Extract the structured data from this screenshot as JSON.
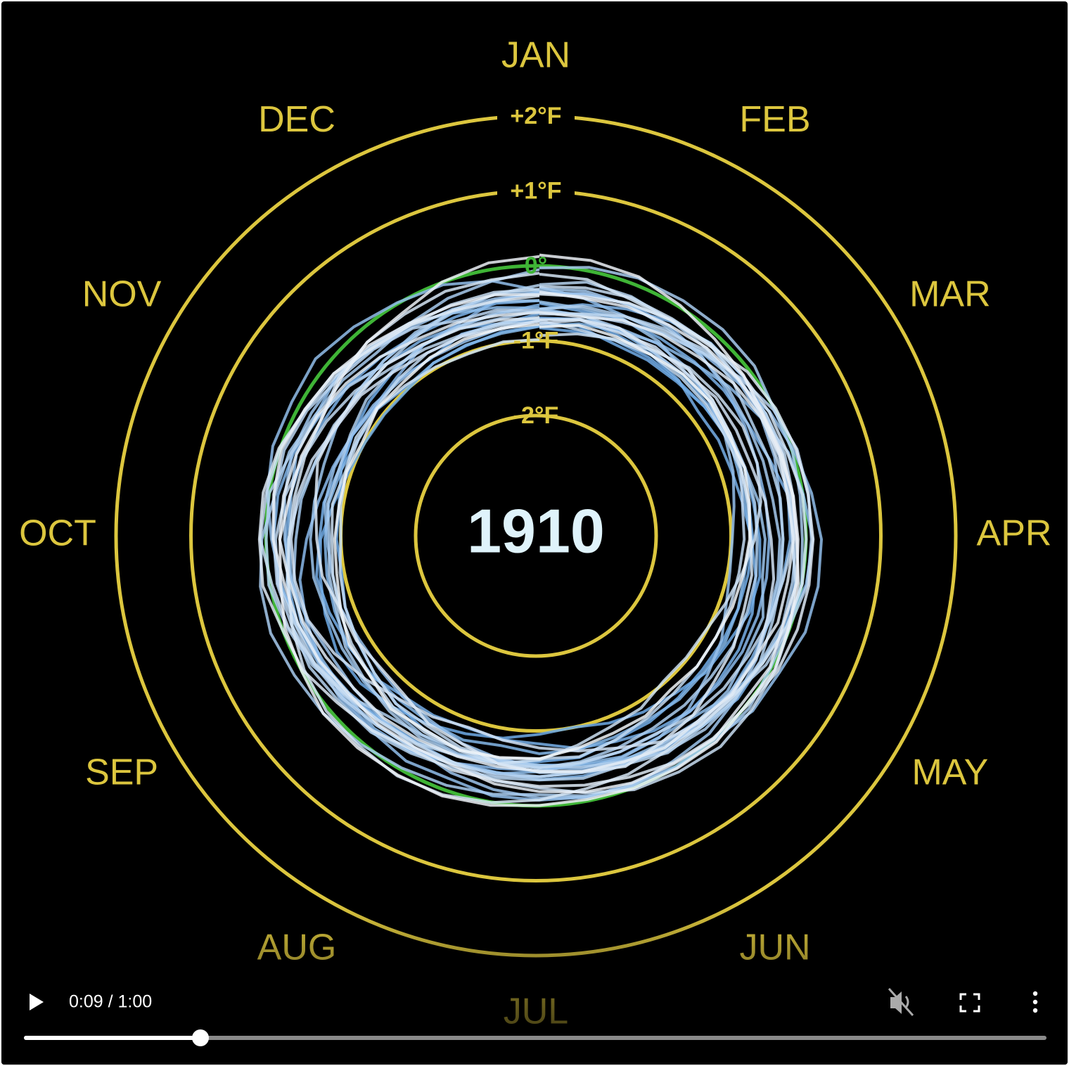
{
  "video": {
    "year": "1910",
    "months": [
      "JAN",
      "FEB",
      "MAR",
      "APR",
      "MAY",
      "JUN",
      "JUL",
      "AUG",
      "SEP",
      "OCT",
      "NOV",
      "DEC"
    ],
    "ring_labels": [
      "+2°F",
      "+1°F",
      "0°",
      "-1°F",
      "-2°F"
    ],
    "time": "0:09 / 1:00"
  }
}
